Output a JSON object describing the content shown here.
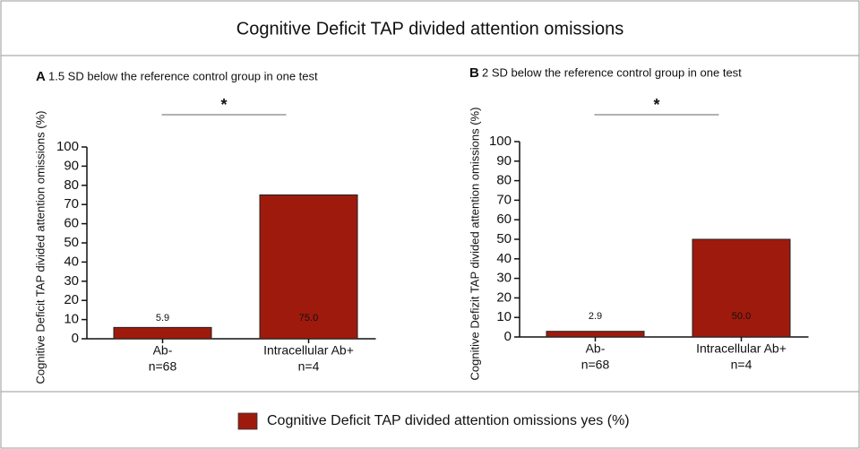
{
  "title": "Cognitive Deficit TAP divided attention omissions",
  "legend": {
    "name": "Cognitive Deficit TAP divided attention omissions yes (%)",
    "color": "#9e1a0c"
  },
  "chart_data": [
    {
      "type": "bar",
      "panel": "A",
      "subtitle": "1.5 SD below the reference control group in one test",
      "ylabel": "Cognitive Deficit TAP divided attention omissions (%)",
      "categories": [
        "Ab-",
        "Intracellular Ab+"
      ],
      "n_labels": [
        "n=68",
        "n=4"
      ],
      "values": [
        5.9,
        75.0
      ],
      "value_labels": [
        "5.9",
        "75.0"
      ],
      "ylim": [
        0,
        100
      ],
      "yticks": [
        0,
        10,
        20,
        30,
        40,
        50,
        60,
        70,
        80,
        90,
        100
      ],
      "annotation": "*"
    },
    {
      "type": "bar",
      "panel": "B",
      "subtitle": "2 SD below the reference control group in one test",
      "ylabel": "Cognitive Defizit TAP divided attention omissions (%)",
      "categories": [
        "Ab-",
        "Intracellular Ab+"
      ],
      "n_labels": [
        "n=68",
        "n=4"
      ],
      "values": [
        2.9,
        50.0
      ],
      "value_labels": [
        "2.9",
        "50.0"
      ],
      "ylim": [
        0,
        100
      ],
      "yticks": [
        0,
        10,
        20,
        30,
        40,
        50,
        60,
        70,
        80,
        90,
        100
      ],
      "annotation": "*"
    }
  ]
}
